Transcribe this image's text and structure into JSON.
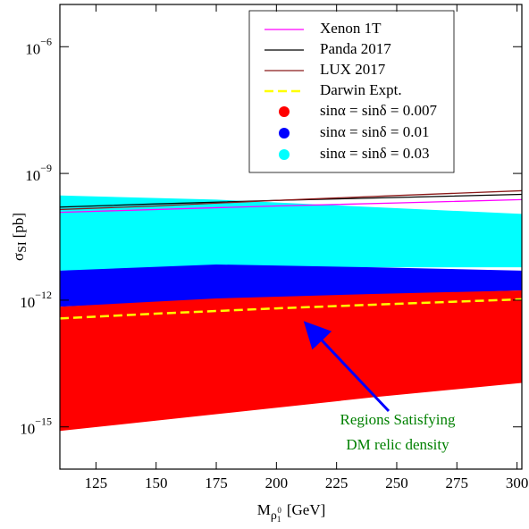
{
  "chart_data": {
    "type": "band_line",
    "y_label": {
      "main": "σ",
      "sub": "SI",
      "unit": "[pb]"
    },
    "x_label": {
      "main": "M",
      "sub": "ρ",
      "subsub": "1",
      "sup": "0",
      "unit": "[GeV]"
    },
    "xlim": [
      110,
      302
    ],
    "xticks": [
      125,
      150,
      175,
      200,
      225,
      250,
      275,
      300
    ],
    "ylim": [
      1e-16,
      1e-05
    ],
    "log_y": true,
    "yticks": [
      {
        "value": 1e-15,
        "label": "10",
        "exponent": "−15"
      },
      {
        "value": 1e-12,
        "label": "10",
        "exponent": "−12"
      },
      {
        "value": 1e-09,
        "label": "10",
        "exponent": "−9"
      },
      {
        "value": 1e-06,
        "label": "10",
        "exponent": "−6"
      }
    ],
    "x": [
      110,
      150,
      200,
      250,
      302
    ],
    "bands": [
      {
        "name": "sinα = sinδ = 0.03",
        "color": "#00ffff",
        "x": [
          110,
          175,
          240,
          302
        ],
        "upper": [
          3e-10,
          2.4e-10,
          1.6e-10,
          1.1e-10
        ],
        "lower": [
          5e-12,
          6e-12,
          6e-12,
          6e-12
        ]
      },
      {
        "name": "sinα = sinδ = 0.01",
        "color": "#0000ff",
        "x": [
          110,
          175,
          240,
          302
        ],
        "upper": [
          5e-12,
          7e-12,
          6e-12,
          5e-12
        ],
        "lower": [
          7e-13,
          1e-12,
          1.3e-12,
          1.7e-12
        ]
      },
      {
        "name": "sinα = sinδ = 0.007",
        "color": "#ff0000",
        "x": [
          110,
          175,
          240,
          302
        ],
        "upper": [
          7e-13,
          1.1e-12,
          1.4e-12,
          1.7e-12
        ],
        "lower": [
          8e-16,
          2e-15,
          5e-15,
          1.1e-14
        ]
      }
    ],
    "series": [
      {
        "name": "Xenon 1T",
        "color": "#ff00ff",
        "dash": false,
        "values": [
          1.2e-10,
          1.4e-10,
          1.7e-10,
          2e-10,
          2.4e-10
        ]
      },
      {
        "name": "Panda 2017",
        "color": "#000000",
        "dash": false,
        "values": [
          1.6e-10,
          1.9e-10,
          2.3e-10,
          2.7e-10,
          3.2e-10
        ]
      },
      {
        "name": "LUX 2017",
        "color": "#8b1a1a",
        "dash": false,
        "values": [
          1.4e-10,
          1.7e-10,
          2.3e-10,
          3e-10,
          3.9e-10
        ]
      },
      {
        "name": "Darwin Expt.",
        "color": "#ffff00",
        "dash": true,
        "values": [
          3.7e-13,
          4.8e-13,
          6.4e-13,
          8.2e-13,
          1.05e-12
        ]
      }
    ],
    "annotation": [
      "Regions Satisfying",
      "DM relic density"
    ],
    "annotation_color": "#008000"
  }
}
